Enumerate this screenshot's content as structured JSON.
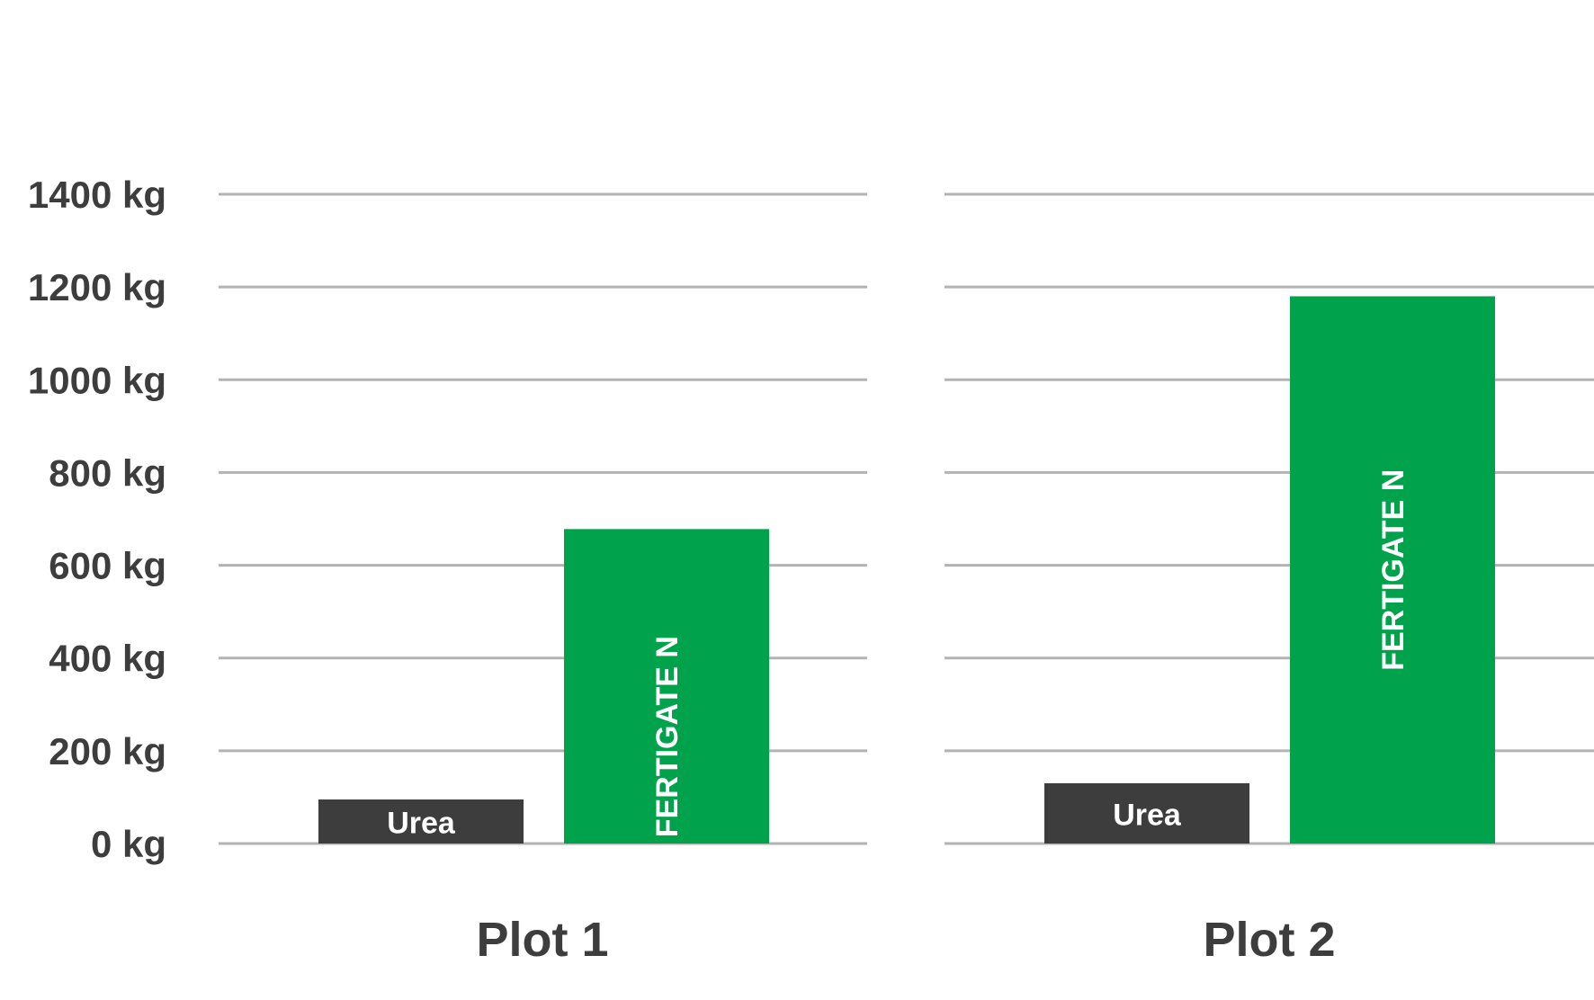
{
  "chart_data": {
    "type": "bar",
    "categories": [
      "Plot 1",
      "Plot 2"
    ],
    "series": [
      {
        "name": "Urea",
        "values": [
          95,
          130
        ],
        "color": "#3d3d3d"
      },
      {
        "name": "FERTIGATE N",
        "values": [
          678,
          1180
        ],
        "color": "#00a34b"
      }
    ],
    "y_ticks": [
      "0 kg",
      "200 kg",
      "400 kg",
      "600 kg",
      "800 kg",
      "1000 kg",
      "1200 kg",
      "1400 kg"
    ],
    "y_tick_values": [
      0,
      200,
      400,
      600,
      800,
      1000,
      1200,
      1400
    ],
    "ylim": [
      0,
      1400
    ],
    "grid": true,
    "gridline_color": "#b3b3b3"
  }
}
